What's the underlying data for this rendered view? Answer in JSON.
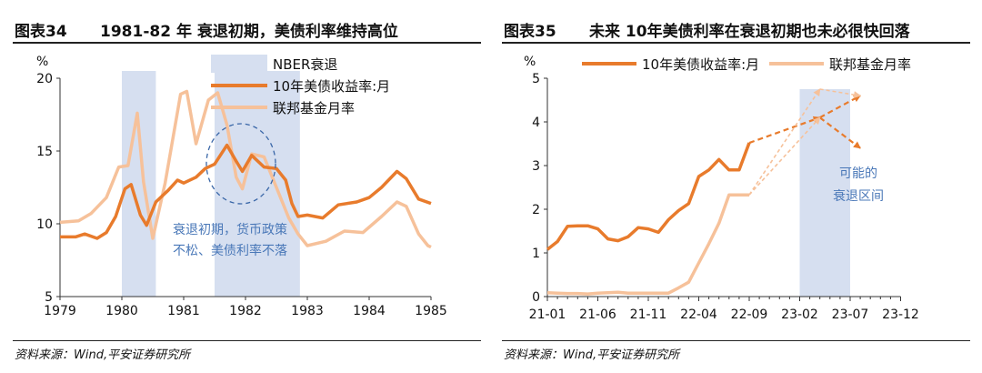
{
  "chart_data": [
    {
      "type": "line",
      "figure_number": "图表34",
      "title": "1981-82 年 衰退初期，美债利率维持高位",
      "ylabel": "%",
      "ylim": [
        5,
        20
      ],
      "yticks": [
        "20",
        "15",
        "10",
        "5"
      ],
      "xlim": [
        1979,
        1985
      ],
      "xticks": [
        "1979",
        "1980",
        "1981",
        "1982",
        "1983",
        "1984",
        "1985"
      ],
      "shaded_periods": [
        {
          "label": "NBER衰退",
          "start": 1980.0,
          "end": 1980.55
        },
        {
          "label": "NBER衰退",
          "start": 1981.5,
          "end": 1982.88
        }
      ],
      "series": [
        {
          "name": "10年美债收益率:月",
          "color": "#e87b2c",
          "x": [
            1979.0,
            1979.25,
            1979.4,
            1979.6,
            1979.75,
            1979.9,
            1980.05,
            1980.15,
            1980.3,
            1980.4,
            1980.55,
            1980.75,
            1980.9,
            1981.0,
            1981.2,
            1981.35,
            1981.5,
            1981.7,
            1981.85,
            1981.95,
            1982.1,
            1982.3,
            1982.5,
            1982.65,
            1982.75,
            1982.85,
            1983.0,
            1983.25,
            1983.5,
            1983.8,
            1984.0,
            1984.2,
            1984.45,
            1984.6,
            1984.8,
            1985.0
          ],
          "values": [
            9.1,
            9.1,
            9.3,
            9.0,
            9.4,
            10.5,
            12.4,
            12.7,
            10.6,
            9.9,
            11.5,
            12.3,
            13.0,
            12.8,
            13.2,
            13.8,
            14.1,
            15.4,
            14.3,
            13.6,
            14.7,
            13.9,
            13.8,
            13.0,
            11.4,
            10.5,
            10.6,
            10.4,
            11.3,
            11.5,
            11.8,
            12.5,
            13.6,
            13.1,
            11.7,
            11.4
          ]
        },
        {
          "name": "联邦基金月率",
          "color": "#f6c19a",
          "x": [
            1979.0,
            1979.3,
            1979.5,
            1979.75,
            1979.95,
            1980.1,
            1980.25,
            1980.35,
            1980.5,
            1980.7,
            1980.95,
            1981.05,
            1981.2,
            1981.4,
            1981.55,
            1981.7,
            1981.85,
            1981.95,
            1982.1,
            1982.3,
            1982.5,
            1982.7,
            1982.85,
            1983.0,
            1983.3,
            1983.6,
            1983.9,
            1984.2,
            1984.45,
            1984.6,
            1984.8,
            1984.95,
            1985.0
          ],
          "values": [
            10.1,
            10.2,
            10.7,
            11.8,
            13.9,
            14.0,
            17.6,
            12.9,
            9.0,
            12.8,
            18.9,
            19.1,
            15.5,
            18.5,
            19.0,
            16.8,
            13.2,
            12.4,
            14.8,
            14.6,
            12.5,
            10.4,
            9.3,
            8.5,
            8.8,
            9.5,
            9.4,
            10.5,
            11.5,
            11.2,
            9.3,
            8.5,
            8.4
          ]
        }
      ],
      "legend": [
        "NBER衰退",
        "10年美债收益率:月",
        "联邦基金月率"
      ],
      "annotation": [
        "衰退初期，货币政策",
        "不松、美债利率不落"
      ],
      "source": "资料来源：Wind,平安证券研究所"
    },
    {
      "type": "line",
      "figure_number": "图表35",
      "title": "未来 10年美债利率在衰退初期也未必很快回落",
      "ylabel": "%",
      "ylim": [
        0,
        5
      ],
      "yticks": [
        "5",
        "4",
        "3",
        "2",
        "1",
        "0"
      ],
      "xticks": [
        "21-01",
        "21-06",
        "21-11",
        "22-04",
        "22-09",
        "23-02",
        "23-07",
        "23-12"
      ],
      "shaded_periods": [
        {
          "label": "可能的衰退区间",
          "start": 25,
          "end": 30
        }
      ],
      "series": [
        {
          "name": "10年美债收益率:月",
          "color": "#e87b2c",
          "x": [
            0,
            1,
            2,
            3,
            4,
            5,
            6,
            7,
            8,
            9,
            10,
            11,
            12,
            13,
            14,
            15,
            16,
            17,
            18,
            19,
            20
          ],
          "values": [
            1.08,
            1.26,
            1.61,
            1.62,
            1.62,
            1.55,
            1.32,
            1.28,
            1.37,
            1.58,
            1.55,
            1.47,
            1.76,
            1.97,
            2.13,
            2.75,
            2.9,
            3.14,
            2.9,
            2.9,
            3.52
          ]
        },
        {
          "name": "联邦基金月率",
          "color": "#f6c19a",
          "x": [
            0,
            1,
            2,
            3,
            4,
            5,
            6,
            7,
            8,
            9,
            10,
            11,
            12,
            13,
            14,
            15,
            16,
            17,
            18,
            19,
            20
          ],
          "values": [
            0.09,
            0.08,
            0.07,
            0.07,
            0.06,
            0.08,
            0.09,
            0.1,
            0.08,
            0.08,
            0.08,
            0.08,
            0.08,
            0.2,
            0.33,
            0.77,
            1.21,
            1.68,
            2.33,
            2.33,
            2.33
          ]
        }
      ],
      "projections": [
        {
          "series": "10年美债收益率:月",
          "from": [
            20,
            3.52
          ],
          "to": [
            27,
            4.1
          ]
        },
        {
          "series": "10年美债收益率:月",
          "from": [
            27,
            4.1
          ],
          "to": [
            31,
            4.6
          ]
        },
        {
          "series": "10年美债收益率:月",
          "from": [
            27,
            4.1
          ],
          "to": [
            31,
            3.4
          ]
        },
        {
          "series": "联邦基金月率",
          "from": [
            20,
            2.33
          ],
          "to": [
            27,
            4.1
          ]
        },
        {
          "series": "联邦基金月率",
          "from": [
            20,
            2.33
          ],
          "to": [
            27,
            4.75
          ]
        },
        {
          "series": "联邦基金月率",
          "from": [
            27,
            4.75
          ],
          "to": [
            31,
            4.6
          ]
        }
      ],
      "legend": [
        "10年美债收益率:月",
        "联邦基金月率"
      ],
      "annotation": [
        "可能的",
        "衰退区间"
      ],
      "source": "资料来源：Wind,平安证券研究所"
    }
  ]
}
